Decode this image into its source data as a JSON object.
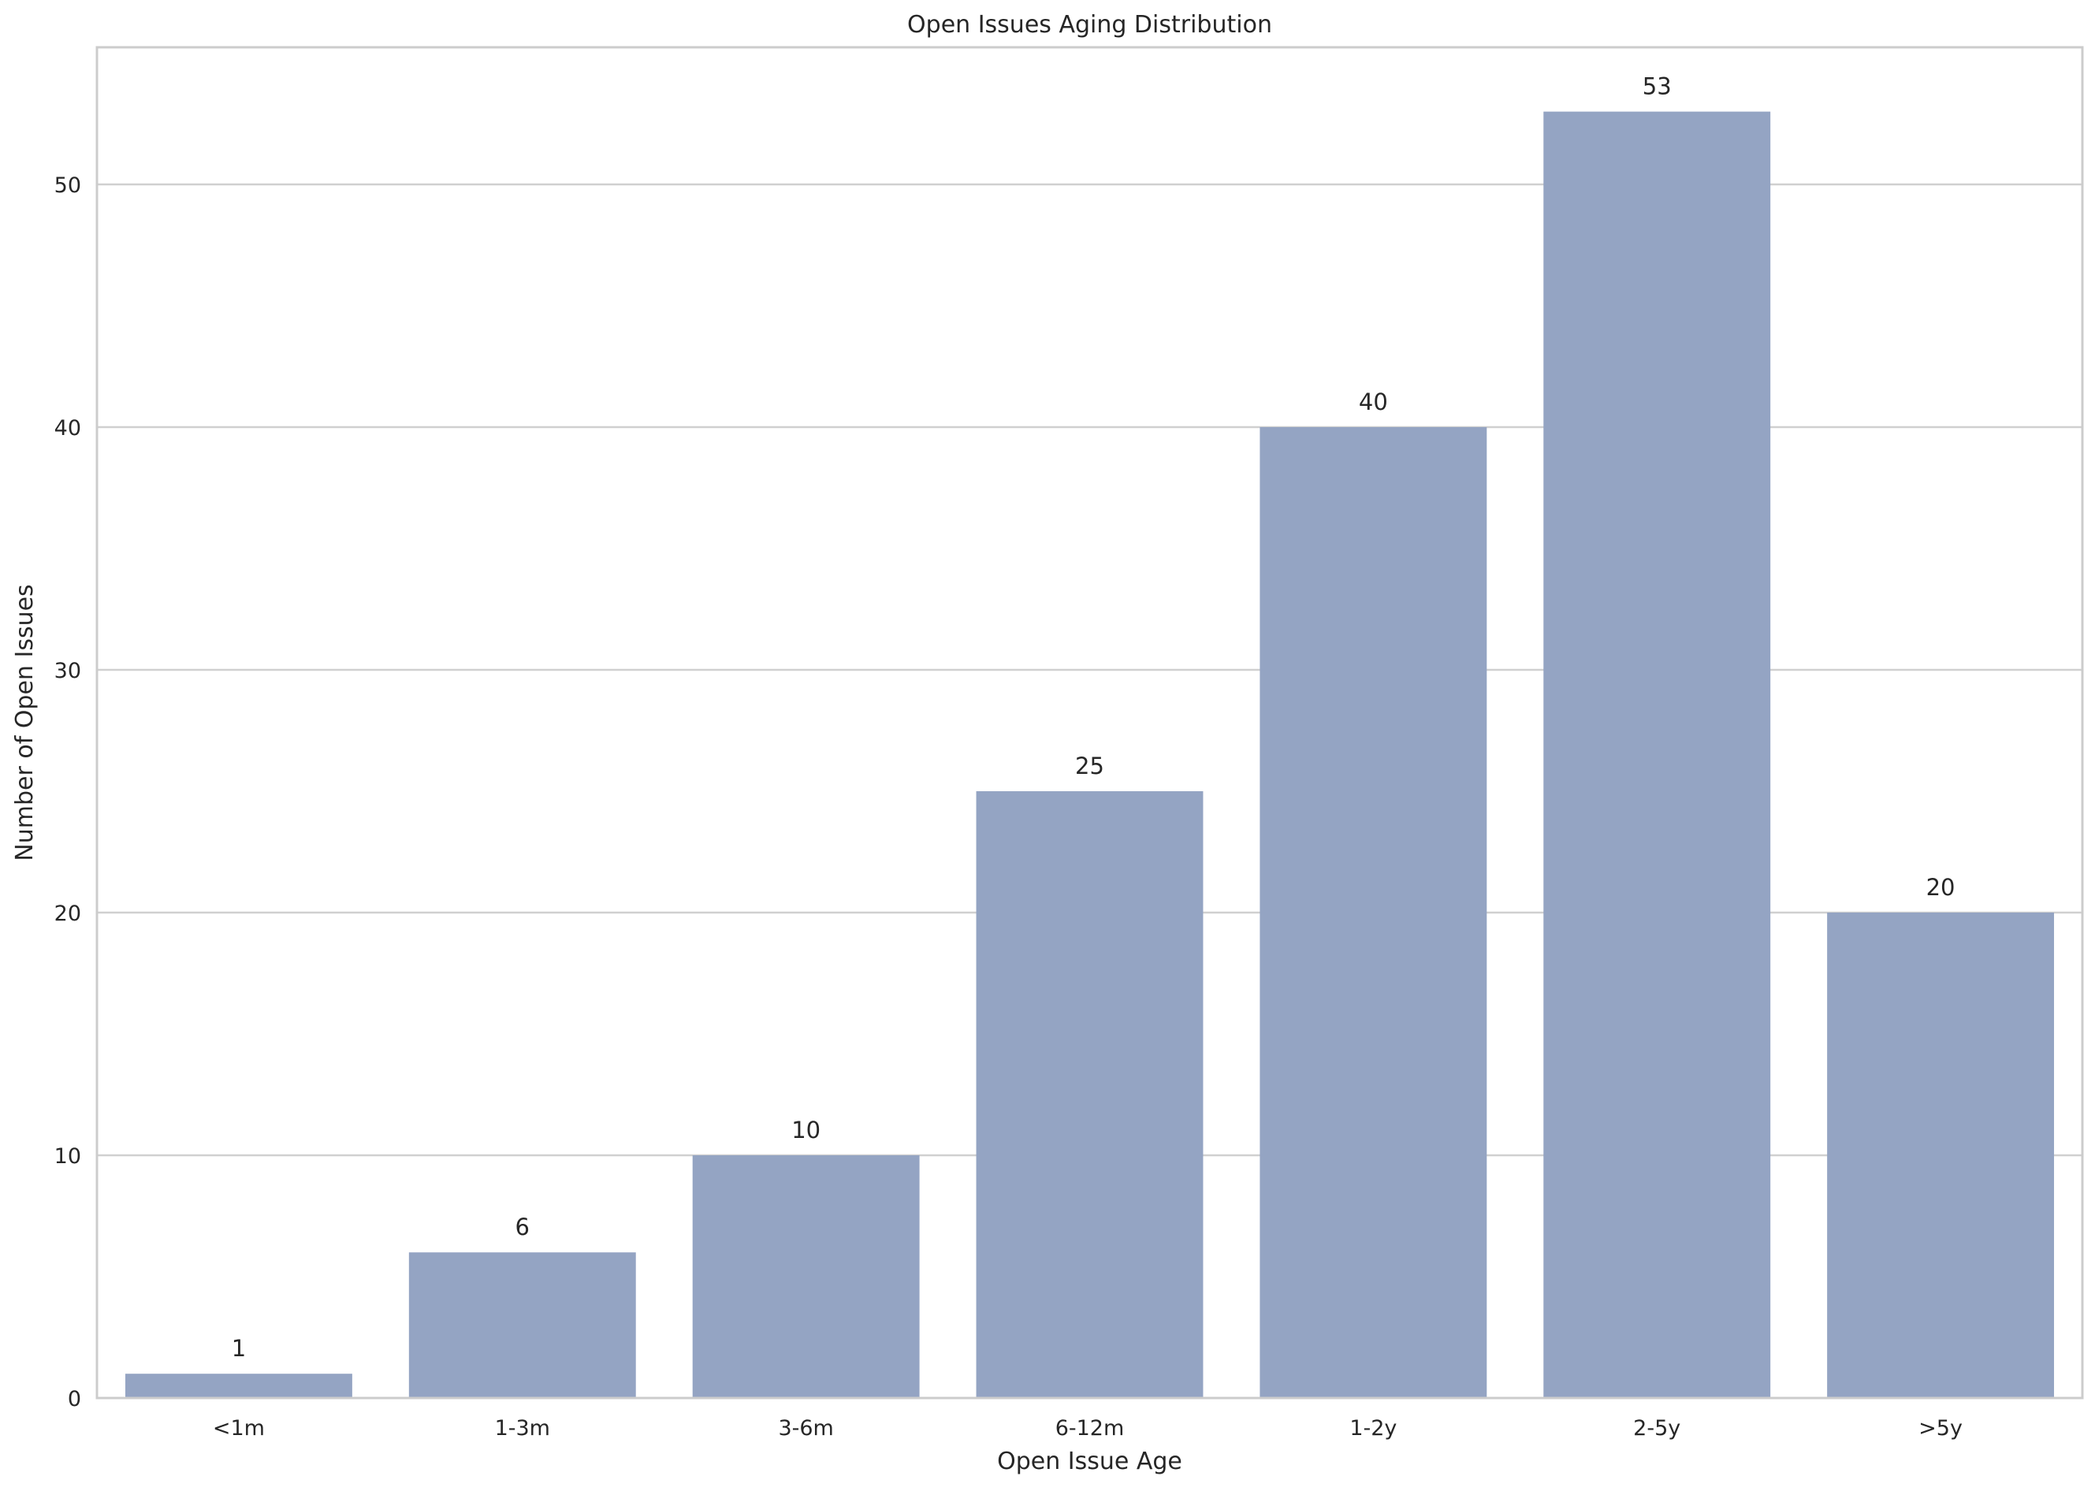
{
  "chart_data": {
    "type": "bar",
    "title": "Open Issues Aging Distribution",
    "xlabel": "Open Issue Age",
    "ylabel": "Number of Open Issues",
    "categories": [
      "<1m",
      "1-3m",
      "3-6m",
      "6-12m",
      "1-2y",
      "2-5y",
      ">5y"
    ],
    "values": [
      1,
      6,
      10,
      25,
      40,
      53,
      20
    ],
    "ylim": [
      0,
      55.65
    ],
    "yticks": [
      0,
      10,
      20,
      30,
      40,
      50
    ],
    "grid": true,
    "bar_color": "#94a4c3",
    "grid_color": "#d0d0d0",
    "axes_edge_color": "#cccccc",
    "text_color": "#262626"
  }
}
